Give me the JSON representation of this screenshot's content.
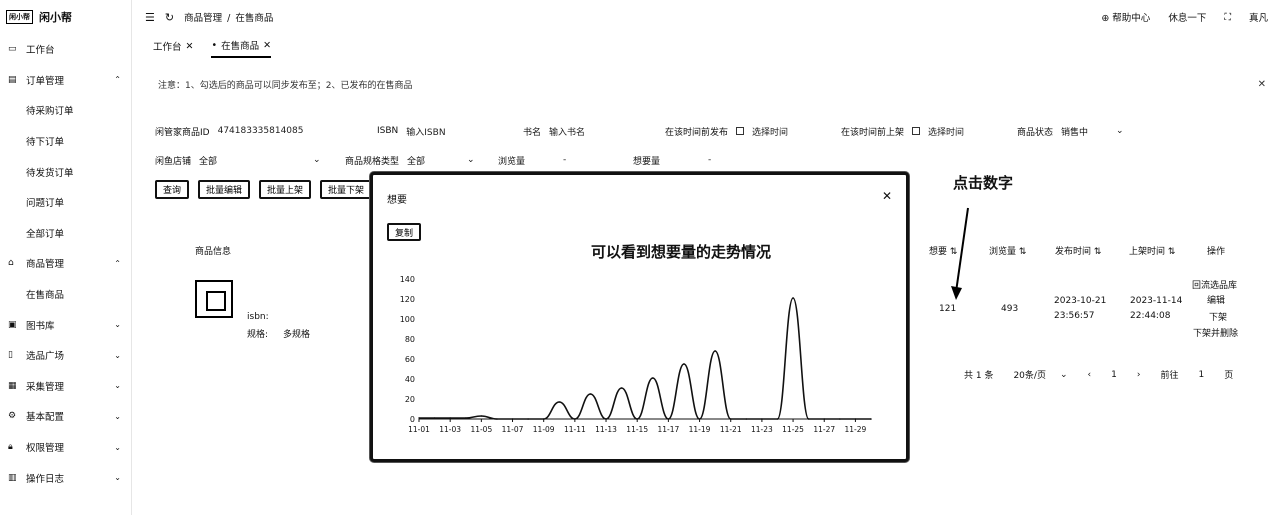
{
  "brand": {
    "logo": "闲小帮",
    "name": "闲小帮"
  },
  "sidebar": {
    "items": [
      {
        "icon": "monitor-icon",
        "label": "工作台",
        "caret": ""
      },
      {
        "icon": "order-icon",
        "label": "订单管理",
        "caret": "⌃"
      },
      {
        "icon": "",
        "label": "待采购订单",
        "caret": "",
        "sub": true
      },
      {
        "icon": "",
        "label": "待下订单",
        "caret": "",
        "sub": true
      },
      {
        "icon": "",
        "label": "待发货订单",
        "caret": "",
        "sub": true
      },
      {
        "icon": "",
        "label": "问题订单",
        "caret": "",
        "sub": true
      },
      {
        "icon": "",
        "label": "全部订单",
        "caret": "",
        "sub": true
      },
      {
        "icon": "bag-icon",
        "label": "商品管理",
        "caret": "⌃"
      },
      {
        "icon": "",
        "label": "在售商品",
        "caret": "",
        "sub": true
      },
      {
        "icon": "image-icon",
        "label": "图书库",
        "caret": "⌄"
      },
      {
        "icon": "phone-icon",
        "label": "选品广场",
        "caret": "⌄"
      },
      {
        "icon": "cart-icon",
        "label": "采集管理",
        "caret": "⌄"
      },
      {
        "icon": "gear-icon",
        "label": "基本配置",
        "caret": "⌄"
      },
      {
        "icon": "lock-icon",
        "label": "权限管理",
        "caret": "⌄"
      },
      {
        "icon": "log-icon",
        "label": "操作日志",
        "caret": "⌄"
      }
    ]
  },
  "header": {
    "breadcrumb": [
      "商品管理",
      "在售商品"
    ],
    "right": [
      "帮助中心",
      "休息一下",
      "真凡"
    ]
  },
  "tabs": [
    {
      "label": "工作台",
      "active": false
    },
    {
      "label": "在售商品",
      "active": true
    }
  ],
  "notice": {
    "text": "注意：1、勾选后的商品可以同步发布至；2、已发布的在售商品"
  },
  "filters": {
    "row1": [
      {
        "label": "闲管家商品ID",
        "value": "474183335814085"
      },
      {
        "label": "ISBN",
        "value": "输入ISBN"
      },
      {
        "label": "书名",
        "value": "输入书名"
      },
      {
        "label": "在该时间前发布",
        "value": "选择时间"
      },
      {
        "label": "在该时间前上架",
        "value": "选择时间"
      },
      {
        "label": "商品状态",
        "value": "销售中"
      }
    ],
    "row2": [
      {
        "label": "闲鱼店铺",
        "value": "全部"
      },
      {
        "label": "商品规格类型",
        "value": "全部"
      },
      {
        "label": "浏览量",
        "value": "-"
      },
      {
        "label": "想要量",
        "value": "-"
      }
    ]
  },
  "buttons": [
    "查询",
    "批量编辑",
    "批量上架",
    "批量下架"
  ],
  "table": {
    "headers": [
      "商品信息",
      "想要",
      "浏览量",
      "发布时间",
      "上架时间",
      "操作"
    ],
    "row": {
      "title": "",
      "isbn_label": "isbn:",
      "spec_label": "规格:",
      "spec_value": "多规格",
      "want": "121",
      "views": "493",
      "published_date": "2023-10-21",
      "published_time": "23:56:57",
      "listed_date": "2023-11-14",
      "listed_time": "22:44:08",
      "actions": [
        "回流选品库",
        "编辑",
        "下架",
        "下架并删除"
      ]
    }
  },
  "pagination": {
    "total": "共 1 条",
    "page_size": "20条/页",
    "page": "1",
    "goto": "前往",
    "goto_page": "1",
    "unit": "页"
  },
  "annotation": {
    "text": "点击数字"
  },
  "modal": {
    "title": "想要",
    "button": "复制",
    "caption": "可以看到想要量的走势情况"
  },
  "chart_data": {
    "type": "line",
    "title": "",
    "xlabel": "",
    "ylabel": "",
    "ylim": [
      0,
      140
    ],
    "yticks": [
      0,
      20,
      40,
      60,
      80,
      100,
      120,
      140
    ],
    "x_ticklabels": [
      "11-01",
      "11-03",
      "11-05",
      "11-07",
      "11-09",
      "11-11",
      "11-13",
      "11-15",
      "11-17",
      "11-19",
      "11-21",
      "11-23",
      "11-25",
      "11-27",
      "11-29"
    ],
    "categories": [
      "11-01",
      "11-02",
      "11-03",
      "11-04",
      "11-05",
      "11-06",
      "11-07",
      "11-08",
      "11-09",
      "11-10",
      "11-11",
      "11-12",
      "11-13",
      "11-14",
      "11-15",
      "11-16",
      "11-17",
      "11-18",
      "11-19",
      "11-20",
      "11-21",
      "11-22",
      "11-23",
      "11-24",
      "11-25",
      "11-26",
      "11-27",
      "11-28",
      "11-29",
      "11-30"
    ],
    "series": [
      {
        "name": "",
        "values": [
          1,
          1,
          1,
          1,
          3,
          0,
          0,
          0,
          0,
          17,
          0,
          25,
          0,
          31,
          0,
          41,
          0,
          55,
          0,
          68,
          0,
          0,
          0,
          0,
          121,
          0,
          0,
          0,
          0,
          0
        ]
      }
    ],
    "grid": false,
    "legend": "none",
    "line_color": "#111111"
  }
}
